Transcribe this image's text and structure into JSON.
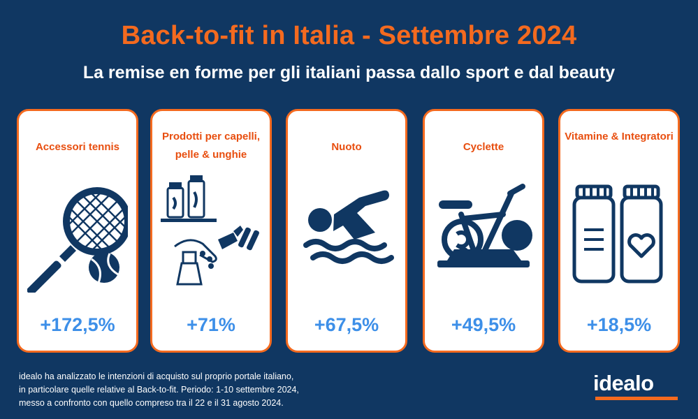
{
  "header": {
    "title": "Back-to-fit in Italia - Settembre 2024",
    "subtitle": "La remise en forme per gli italiani passa dallo sport e dal beauty"
  },
  "cards": [
    {
      "label": "Accessori tennis",
      "value": "+172,5%",
      "icon": "tennis-racket-ball-icon"
    },
    {
      "label": "Prodotti per capelli, pelle & unghie",
      "value": "+71%",
      "icon": "beauty-products-icon"
    },
    {
      "label": "Nuoto",
      "value": "+67,5%",
      "icon": "swimmer-icon"
    },
    {
      "label": "Cyclette",
      "value": "+49,5%",
      "icon": "exercise-bike-icon"
    },
    {
      "label": "Vitamine & Integratori",
      "value": "+18,5%",
      "icon": "supplement-bottles-icon"
    }
  ],
  "footnote": {
    "line1": "idealo ha analizzato le intenzioni di acquisto sul proprio portale italiano,",
    "line2": "in particolare quelle relative al Back-to-fit. Periodo: 1-10 settembre 2024,",
    "line3": "messo a confronto con quello compreso tra il 22 e il 31 agosto 2024."
  },
  "brand": {
    "logo_text": "idealo"
  },
  "colors": {
    "background": "#103762",
    "accent": "#f46a1f",
    "label": "#e84e0f",
    "value": "#3d8fe8",
    "icon": "#103762"
  }
}
